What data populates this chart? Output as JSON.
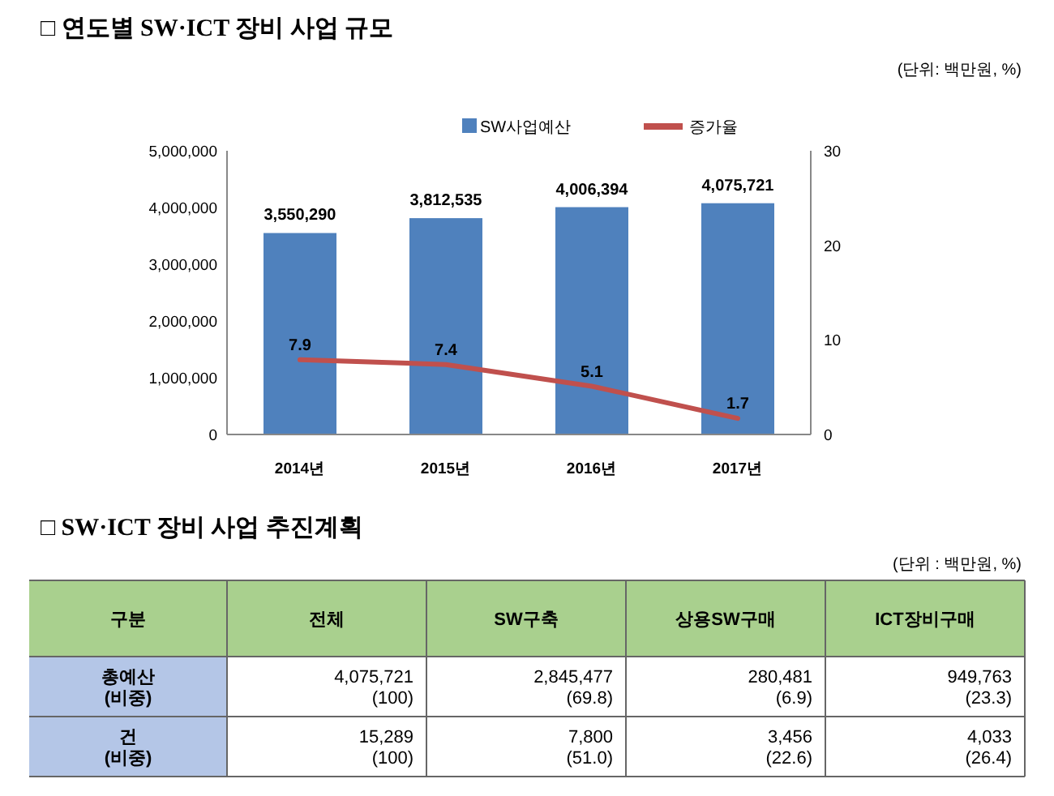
{
  "chart_data": [
    {
      "type": "bar",
      "title": "□ 연도별 SW·ICT 장비 사업 규모",
      "annotations": [
        "(단위: 백만원, %)"
      ],
      "categories": [
        "2014년",
        "2015년",
        "2016년",
        "2017년"
      ],
      "series": [
        {
          "name": "SW사업예산",
          "color": "#4f81bd",
          "values": [
            3550290,
            3812535,
            4006394,
            4075721
          ],
          "value_labels": [
            "3,550,290",
            "3,812,535",
            "4,006,394",
            "4,075,721"
          ]
        },
        {
          "name": "증가율",
          "type": "line",
          "axis": "y2",
          "color": "#c0504d",
          "values": [
            7.9,
            7.4,
            5.1,
            1.7
          ],
          "value_labels": [
            "7.9",
            "7.4",
            "5.1",
            "1.7"
          ]
        }
      ],
      "ylim": [
        0,
        5000000
      ],
      "yticks": [
        {
          "value": 0,
          "label": "0"
        },
        {
          "value": 1000000,
          "label": "1,000,000"
        },
        {
          "value": 2000000,
          "label": "2,000,000"
        },
        {
          "value": 3000000,
          "label": "3,000,000"
        },
        {
          "value": 4000000,
          "label": "4,000,000"
        },
        {
          "value": 5000000,
          "label": "5,000,000"
        }
      ],
      "y2lim": [
        0,
        30
      ],
      "y2ticks": [
        0,
        10,
        20,
        30
      ],
      "legend": "top",
      "marker": "none"
    },
    {
      "type": "heatmap",
      "title": "□ SW·ICT 장비 사업 추진계획",
      "annotations": [
        "(단위 : 백만원, %)"
      ],
      "ylabel": "구분",
      "categories": [
        "전체",
        "SW구축",
        "상용SW구매",
        "ICT장비구매"
      ],
      "y_categories": [
        "총예산\n(비중)",
        "건\n(비중)"
      ],
      "cells": [
        [
          null,
          null,
          null,
          null
        ],
        [
          null,
          null,
          null,
          null
        ]
      ],
      "cell_labels": [
        [
          "4,075,721\n(100)",
          "2,845,477\n(69.8)",
          "280,481\n(6.9)",
          "949,763\n(23.3)"
        ],
        [
          "15,289\n(100)",
          "7,800\n(51.0)",
          "3,456\n(22.6)",
          "4,033\n(26.4)"
        ]
      ]
    }
  ]
}
